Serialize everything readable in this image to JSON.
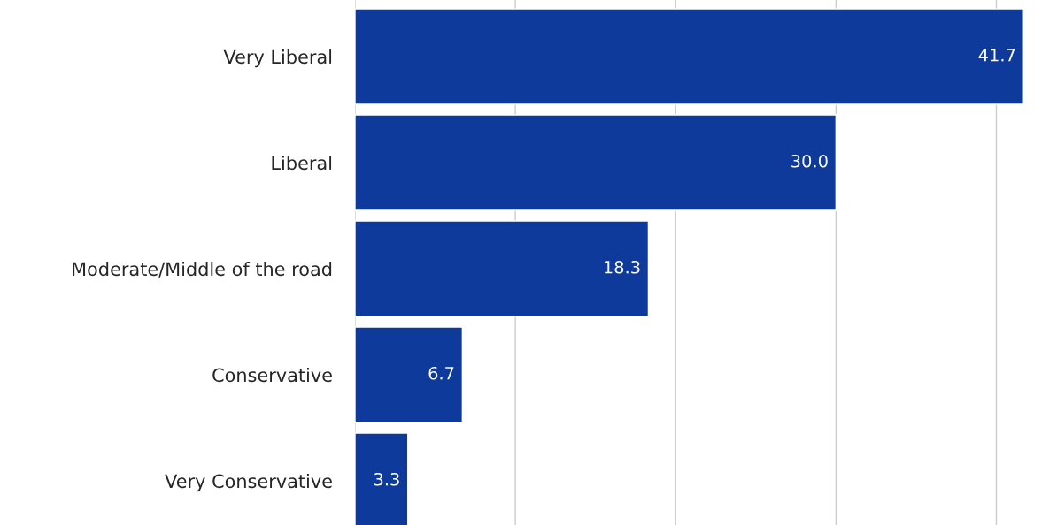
{
  "chart_data": {
    "type": "bar",
    "orientation": "horizontal",
    "categories": [
      "Very Liberal",
      "Liberal",
      "Moderate/Middle of the road",
      "Conservative",
      "Very Conservative"
    ],
    "values": [
      41.7,
      30.0,
      18.3,
      6.7,
      3.3
    ],
    "value_labels": [
      "41.7",
      "30.0",
      "18.3",
      "6.7",
      "3.3"
    ],
    "color": "#0e3a9c",
    "xticks": [
      {
        "value": 0,
        "label": null
      },
      {
        "value": 10,
        "label": null
      },
      {
        "value": 20,
        "label": null
      },
      {
        "value": 30,
        "label": null
      },
      {
        "value": 40,
        "label": null
      }
    ],
    "grid": "x",
    "tick_labels": "y"
  }
}
